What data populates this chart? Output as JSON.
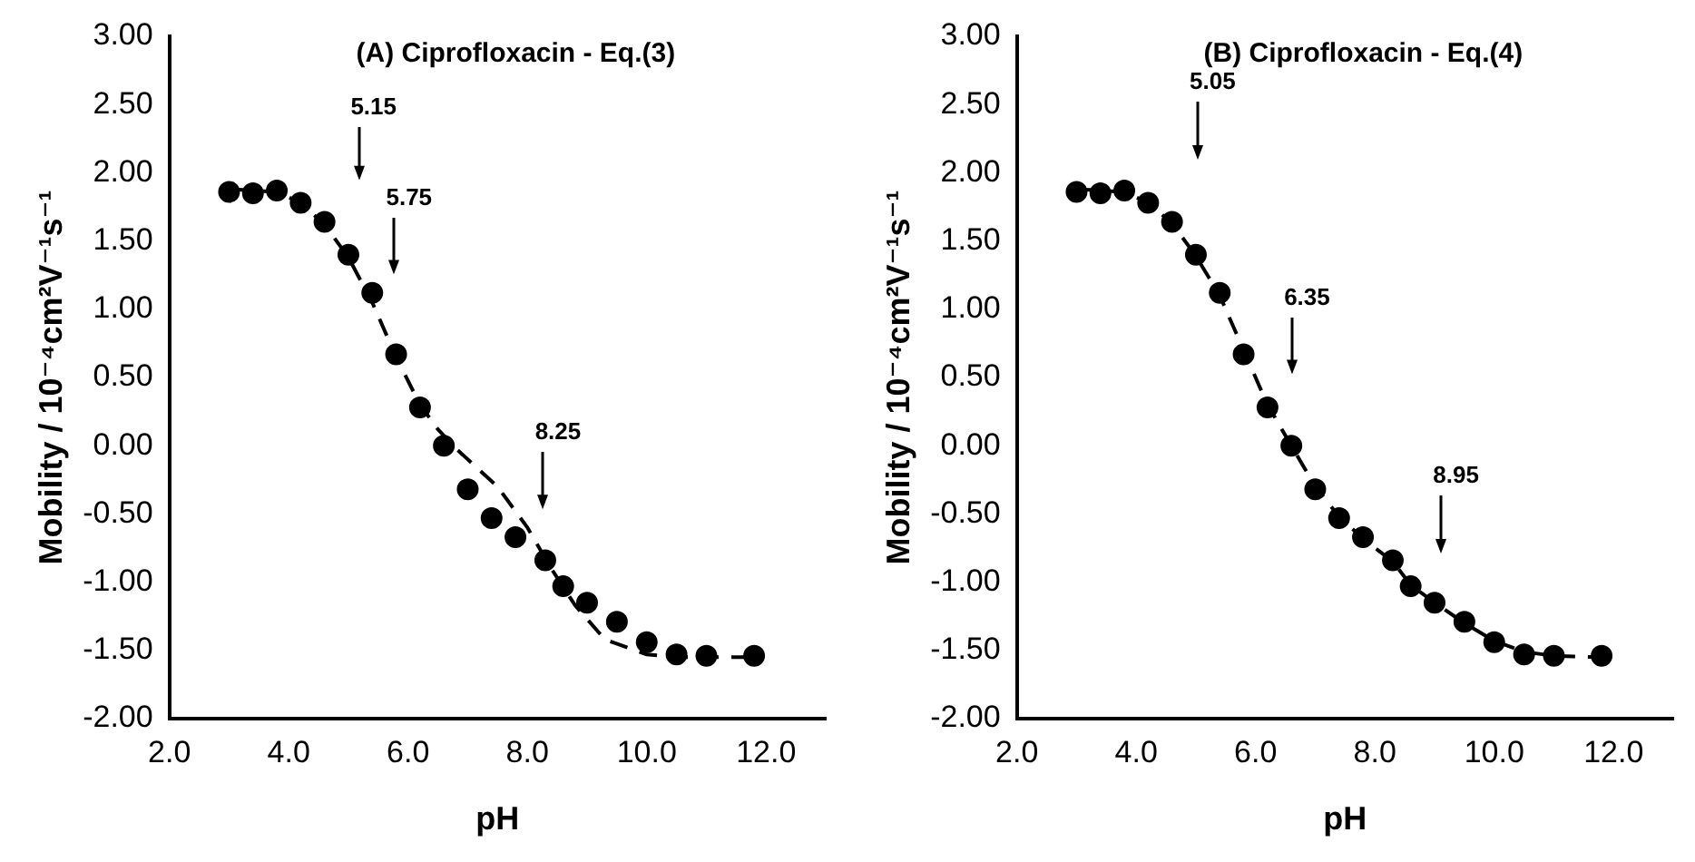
{
  "chart_data": [
    {
      "type": "scatter",
      "title": "(A) Ciprofloxacin - Eq.(3)",
      "xlabel": "pH",
      "ylabel": "Mobility / 10⁻⁴cm²V⁻¹s⁻¹",
      "xlim": [
        2,
        13
      ],
      "xticks": [
        {
          "value": 2,
          "label": "2.0"
        },
        {
          "value": 4,
          "label": "4.0"
        },
        {
          "value": 6,
          "label": "6.0"
        },
        {
          "value": 8,
          "label": "8.0"
        },
        {
          "value": 10,
          "label": "10.0"
        },
        {
          "value": 12,
          "label": "12.0"
        }
      ],
      "ylim": [
        -2,
        3
      ],
      "yticks": [
        {
          "value": -2,
          "label": "-2.00"
        },
        {
          "value": -1.5,
          "label": "-1.50"
        },
        {
          "value": -1,
          "label": "-1.00"
        },
        {
          "value": -0.5,
          "label": "-0.50"
        },
        {
          "value": 0,
          "label": "0.00"
        },
        {
          "value": 0.5,
          "label": "0.50"
        },
        {
          "value": 1,
          "label": "1.00"
        },
        {
          "value": 1.5,
          "label": "1.50"
        },
        {
          "value": 2,
          "label": "2.00"
        },
        {
          "value": 2.5,
          "label": "2.50"
        },
        {
          "value": 3,
          "label": "3.00"
        }
      ],
      "series": [
        {
          "color": "#000000",
          "marker": "circle",
          "x": [
            3.0,
            3.4,
            3.8,
            4.2,
            4.6,
            5.0,
            5.4,
            5.8,
            6.2,
            6.6,
            7.0,
            7.4,
            7.8,
            8.3,
            8.6,
            9.0,
            9.5,
            10.0,
            10.5,
            11.0,
            11.8
          ],
          "values": [
            1.86,
            1.85,
            1.87,
            1.78,
            1.64,
            1.4,
            1.12,
            0.67,
            0.28,
            0.0,
            -0.32,
            -0.53,
            -0.67,
            -0.84,
            -1.03,
            -1.15,
            -1.29,
            -1.44,
            -1.53,
            -1.54,
            -1.54
          ]
        },
        {
          "type": "line",
          "color": "#000000",
          "marker": "none",
          "line_style": "dashed",
          "x": [
            3.0,
            3.8,
            4.2,
            4.6,
            5.0,
            5.4,
            5.8,
            6.2,
            6.5,
            6.8,
            7.5,
            8.0,
            8.4,
            8.8,
            9.3,
            10.0,
            10.5,
            11.8
          ],
          "values": [
            1.88,
            1.86,
            1.78,
            1.62,
            1.38,
            1.05,
            0.65,
            0.3,
            0.12,
            -0.02,
            -0.3,
            -0.6,
            -0.9,
            -1.17,
            -1.42,
            -1.53,
            -1.55,
            -1.55
          ]
        }
      ],
      "annotations": [
        "5.15",
        "5.75",
        "8.25"
      ]
    },
    {
      "type": "scatter",
      "title": "(B) Ciprofloxacin - Eq.(4)",
      "xlabel": "pH",
      "ylabel": "Mobility / 10⁻⁴cm²V⁻¹s⁻¹",
      "xlim": [
        2,
        13
      ],
      "xticks": [
        {
          "value": 2,
          "label": "2.0"
        },
        {
          "value": 4,
          "label": "4.0"
        },
        {
          "value": 6,
          "label": "6.0"
        },
        {
          "value": 8,
          "label": "8.0"
        },
        {
          "value": 10,
          "label": "10.0"
        },
        {
          "value": 12,
          "label": "12.0"
        }
      ],
      "ylim": [
        -2,
        3
      ],
      "yticks": [
        {
          "value": -2,
          "label": "-2.00"
        },
        {
          "value": -1.5,
          "label": "-1.50"
        },
        {
          "value": -1,
          "label": "-1.00"
        },
        {
          "value": -0.5,
          "label": "-0.50"
        },
        {
          "value": 0,
          "label": "0.00"
        },
        {
          "value": 0.5,
          "label": "0.50"
        },
        {
          "value": 1,
          "label": "1.00"
        },
        {
          "value": 1.5,
          "label": "1.50"
        },
        {
          "value": 2,
          "label": "2.00"
        },
        {
          "value": 2.5,
          "label": "2.50"
        },
        {
          "value": 3,
          "label": "3.00"
        }
      ],
      "series": [
        {
          "color": "#000000",
          "marker": "circle",
          "x": [
            3.0,
            3.4,
            3.8,
            4.2,
            4.6,
            5.0,
            5.4,
            5.8,
            6.2,
            6.6,
            7.0,
            7.4,
            7.8,
            8.3,
            8.6,
            9.0,
            9.5,
            10.0,
            10.5,
            11.0,
            11.8
          ],
          "values": [
            1.86,
            1.85,
            1.87,
            1.78,
            1.64,
            1.4,
            1.12,
            0.67,
            0.28,
            0.0,
            -0.32,
            -0.53,
            -0.67,
            -0.84,
            -1.03,
            -1.15,
            -1.29,
            -1.44,
            -1.53,
            -1.54,
            -1.54
          ]
        },
        {
          "type": "line",
          "color": "#000000",
          "marker": "none",
          "line_style": "dashed",
          "x": [
            3.0,
            3.8,
            4.2,
            4.6,
            5.0,
            5.4,
            5.8,
            6.2,
            6.6,
            7.0,
            7.4,
            7.8,
            8.3,
            8.6,
            9.0,
            9.5,
            10.0,
            10.5,
            11.0,
            11.8
          ],
          "values": [
            1.88,
            1.86,
            1.78,
            1.63,
            1.39,
            1.1,
            0.7,
            0.3,
            0.0,
            -0.3,
            -0.52,
            -0.68,
            -0.85,
            -1.02,
            -1.15,
            -1.3,
            -1.43,
            -1.51,
            -1.54,
            -1.55
          ]
        }
      ],
      "annotations": [
        "5.05",
        "6.35",
        "8.95"
      ]
    }
  ]
}
